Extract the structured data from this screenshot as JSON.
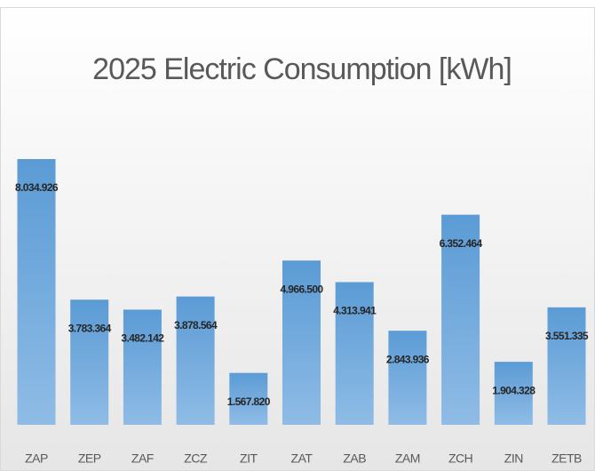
{
  "chart_data": {
    "type": "bar",
    "title": "2025 Electric Consumption [kWh]",
    "categories": [
      "ZAP",
      "ZEP",
      "ZAF",
      "ZCZ",
      "ZIT",
      "ZAT",
      "ZAB",
      "ZAM",
      "ZCH",
      "ZIN",
      "ZETB"
    ],
    "values": [
      8034926,
      3783364,
      3482142,
      3878564,
      1567820,
      4966500,
      4313941,
      2843936,
      6352464,
      1904328,
      3551335
    ],
    "value_labels": [
      "8.034.926",
      "3.783.364",
      "3.482.142",
      "3.878.564",
      "1.567.820",
      "4.966.500",
      "4.313.941",
      "2.843.936",
      "6.352.464",
      "1.904.328",
      "3.551.335"
    ],
    "color": "#5b9bd5"
  }
}
